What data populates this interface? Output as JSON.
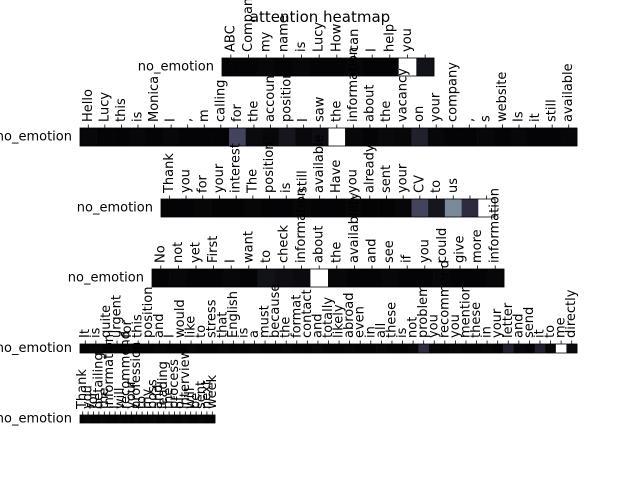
{
  "chart_data": {
    "type": "heatmap",
    "title": "attention heatmap",
    "colormap": "bone",
    "clim": [
      0,
      1
    ],
    "rows": [
      {
        "label": "no_emotion",
        "tokens": [
          "ABC",
          "Company",
          "my",
          "name",
          "is",
          "Lucy",
          "How",
          "can",
          "I",
          "help",
          "you",
          null
        ],
        "values": [
          0.02,
          0.02,
          0.03,
          0.02,
          0.03,
          0.02,
          0.02,
          0.03,
          0.02,
          0.02,
          1.0,
          0.08
        ]
      },
      {
        "label": "no_emotion",
        "tokens": [
          "Hello",
          "Lucy",
          "this",
          "is",
          "Monica",
          "I",
          ",",
          "m",
          "calling",
          "for",
          "the",
          "account",
          "position",
          "I",
          "saw",
          "the",
          "information",
          "about",
          "the",
          "vacancy",
          "on",
          "your",
          "company",
          ",",
          "s",
          "website",
          "Is",
          "it",
          "still",
          "available"
        ],
        "values": [
          0.03,
          0.02,
          0.02,
          0.03,
          0.02,
          0.03,
          0.02,
          0.02,
          0.02,
          0.3,
          0.05,
          0.03,
          0.1,
          0.04,
          0.06,
          1.0,
          0.03,
          0.02,
          0.04,
          0.03,
          0.15,
          0.03,
          0.02,
          0.02,
          0.03,
          0.02,
          0.03,
          0.02,
          0.02,
          0.03
        ]
      },
      {
        "label": "no_emotion",
        "tokens": [
          "Thank",
          "you",
          "for",
          "your",
          "interest",
          "The",
          "position",
          "is",
          "still",
          "available",
          "Have",
          "you",
          "already",
          "sent",
          "your",
          "CV",
          "to",
          "us",
          null,
          null
        ],
        "values": [
          0.02,
          0.02,
          0.03,
          0.02,
          0.02,
          0.03,
          0.02,
          0.02,
          0.03,
          0.02,
          0.02,
          0.03,
          0.02,
          0.02,
          0.03,
          0.3,
          0.1,
          0.55,
          0.2,
          1.0
        ]
      },
      {
        "label": "no_emotion",
        "tokens": [
          "No",
          "not",
          "yet",
          "First",
          "I",
          "want",
          "to",
          "check",
          "information",
          "about",
          "the",
          "availability",
          "and",
          "see",
          "if",
          "you",
          "could",
          "give",
          "more",
          "information"
        ],
        "values": [
          0.02,
          0.03,
          0.02,
          0.02,
          0.03,
          0.02,
          0.08,
          0.06,
          0.05,
          1.0,
          0.03,
          0.02,
          0.02,
          0.03,
          0.02,
          0.02,
          0.03,
          0.02,
          0.02,
          0.03
        ]
      },
      {
        "label": "no_emotion",
        "tokens": [
          "It",
          "is",
          "quite",
          "urgent",
          "for",
          "this",
          "position",
          "and",
          "I",
          "would",
          "like",
          "to",
          "stress",
          "that",
          "English",
          "is",
          "a",
          "must",
          "because",
          "the",
          "format",
          "contact",
          "and",
          "totally",
          "likely",
          "abroad",
          "even",
          "in",
          "all",
          "these",
          "is",
          "not",
          "problem",
          "you",
          "recommend",
          "you",
          "mention",
          "these",
          "in",
          "your",
          "letter",
          "and",
          "send",
          "it",
          "to",
          "me",
          "directly"
        ],
        "values": [
          0.02,
          0.03,
          0.02,
          0.02,
          0.03,
          0.02,
          0.02,
          0.03,
          0.02,
          0.02,
          0.03,
          0.02,
          0.02,
          0.03,
          0.02,
          0.02,
          0.03,
          0.02,
          0.02,
          0.03,
          0.02,
          0.02,
          0.03,
          0.02,
          0.02,
          0.03,
          0.02,
          0.02,
          0.03,
          0.02,
          0.02,
          0.03,
          0.2,
          0.03,
          0.02,
          0.03,
          0.02,
          0.02,
          0.03,
          0.02,
          0.15,
          0.03,
          0.02,
          0.15,
          0.03,
          1.0,
          0.05
        ]
      },
      {
        "label": "no_emotion",
        "tokens": [
          "Thank",
          "you",
          "for",
          "detailing",
          "the",
          "information",
          "I",
          "will",
          "recommend",
          "your",
          "profession",
          "to",
          "my",
          "boss",
          "and",
          "leading",
          "the",
          "process",
          "of",
          "interview",
          "will",
          "be",
          "sent",
          "next",
          "week"
        ],
        "values": [
          0.02,
          0.03,
          0.02,
          0.02,
          0.03,
          0.02,
          0.02,
          0.03,
          0.02,
          0.02,
          0.03,
          0.02,
          0.02,
          0.03,
          0.02,
          0.02,
          0.03,
          0.02,
          0.02,
          0.03,
          0.02,
          0.02,
          0.03,
          0.02,
          0.02
        ]
      }
    ]
  }
}
